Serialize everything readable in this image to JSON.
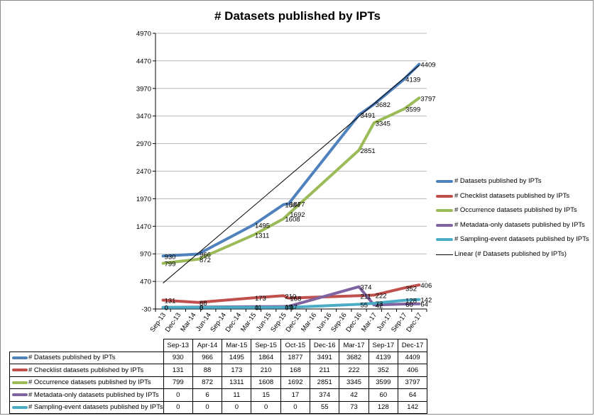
{
  "chart_data": {
    "type": "line",
    "title": "# Datasets published by IPTs",
    "xlabel": "",
    "ylabel": "",
    "ylim": [
      -30,
      4970
    ],
    "yticks": [
      -30,
      470,
      970,
      1470,
      1970,
      2470,
      2970,
      3470,
      3970,
      4470,
      4970
    ],
    "x_tick_labels": [
      "Sep-13",
      "Dec-13",
      "Mar-14",
      "Jun-14",
      "Sep-14",
      "Dec-14",
      "Mar-15",
      "Jun-15",
      "Sep-15",
      "Dec-15",
      "Mar-16",
      "Jun-16",
      "Sep-16",
      "Dec-16",
      "Mar-17",
      "Jun-17",
      "Sep-17",
      "Dec-17"
    ],
    "categories": [
      "Sep-13",
      "Apr-14",
      "Mar-15",
      "Sep-15",
      "Oct-15",
      "Dec-16",
      "Mar-17",
      "Sep-17",
      "Dec-17"
    ],
    "category_index": [
      0,
      2.33,
      6,
      8,
      8.33,
      13,
      14,
      16,
      17
    ],
    "grid": "horizontal",
    "legend_position": "right",
    "series": [
      {
        "name": "# Datasets published by IPTs",
        "color": "#4f81bd",
        "values": [
          930,
          966,
          1495,
          1864,
          1877,
          3491,
          3682,
          4139,
          4409
        ]
      },
      {
        "name": "# Checklist datasets published by IPTs",
        "color": "#c0504d",
        "values": [
          131,
          88,
          173,
          210,
          168,
          211,
          222,
          352,
          406
        ]
      },
      {
        "name": "# Occurrence datasets published by IPTs",
        "color": "#9bbb59",
        "values": [
          799,
          872,
          1311,
          1608,
          1692,
          2851,
          3345,
          3599,
          3797
        ]
      },
      {
        "name": "# Metadata-only datasets published by IPTs",
        "color": "#8064a2",
        "values": [
          0,
          6,
          11,
          15,
          17,
          374,
          42,
          60,
          64
        ]
      },
      {
        "name": "# Sampling-event datasets published by IPTs",
        "color": "#4bacc6",
        "values": [
          0,
          0,
          0,
          0,
          0,
          55,
          73,
          128,
          142
        ]
      }
    ],
    "trendline": {
      "name": "Linear (# Datasets published by IPTs)",
      "color": "#000000",
      "start": 440,
      "end": 4390
    }
  }
}
